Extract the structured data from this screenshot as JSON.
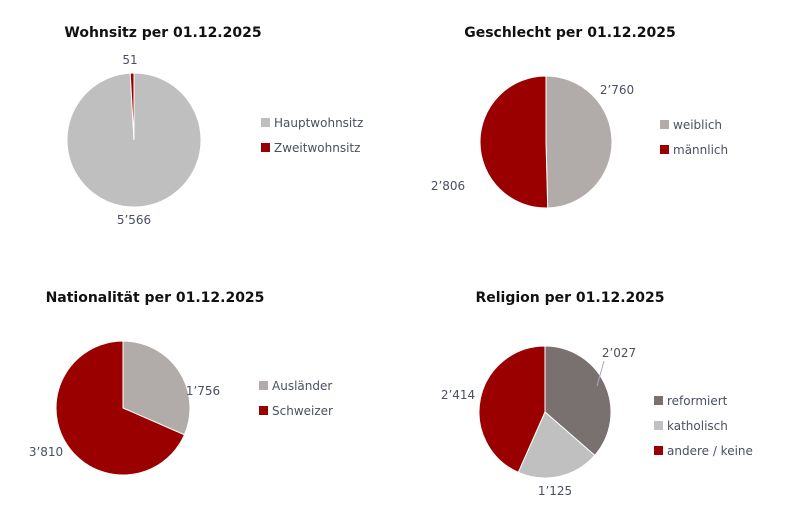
{
  "chart_data": [
    {
      "type": "pie",
      "title": "Wohnsitz per 01.12.2025",
      "slices": [
        {
          "label": "Hauptwohnsitz",
          "value": 5566,
          "display": "5’566",
          "color": "#bfbfbf"
        },
        {
          "label": "Zweitwohnsitz",
          "value": 51,
          "display": "51",
          "color": "#9b0000"
        }
      ],
      "legend": "right"
    },
    {
      "type": "pie",
      "title": "Geschlecht per 01.12.2025",
      "slices": [
        {
          "label": "weiblich",
          "value": 2760,
          "display": "2’760",
          "color": "#b1acaa"
        },
        {
          "label": "männlich",
          "value": 2806,
          "display": "2’806",
          "color": "#9b0000"
        }
      ],
      "legend": "right"
    },
    {
      "type": "pie",
      "title": "Nationalität per 01.12.2025",
      "slices": [
        {
          "label": "Ausländer",
          "value": 1756,
          "display": "1’756",
          "color": "#b1acaa"
        },
        {
          "label": "Schweizer",
          "value": 3810,
          "display": "3’810",
          "color": "#9b0000"
        }
      ],
      "legend": "right"
    },
    {
      "type": "pie",
      "title": "Religion per 01.12.2025",
      "slices": [
        {
          "label": "reformiert",
          "value": 2027,
          "display": "2’027",
          "color": "#787170"
        },
        {
          "label": "katholisch",
          "value": 1125,
          "display": "1’125",
          "color": "#c0c0c0"
        },
        {
          "label": "andere / keine",
          "value": 2414,
          "display": "2’414",
          "color": "#9b0000"
        }
      ],
      "legend": "right"
    }
  ]
}
